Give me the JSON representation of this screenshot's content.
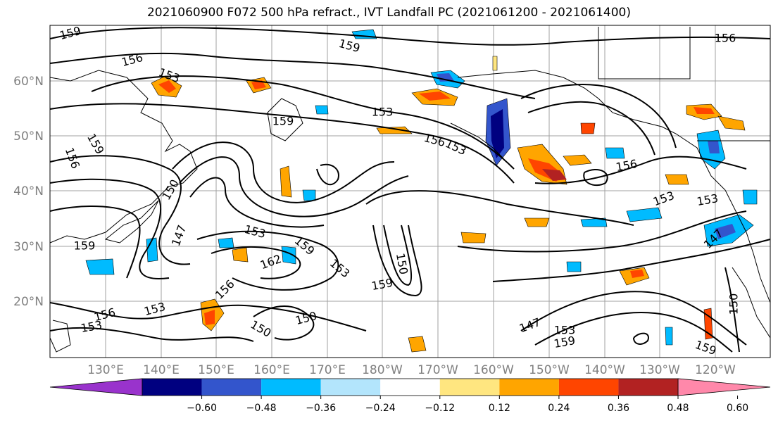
{
  "title": "2021060900 F072 500 hPa refract., IVT Landfall PC (2021061200 - 2021061400)",
  "map": {
    "lat_labels": [
      "60°N",
      "50°N",
      "40°N",
      "30°N",
      "20°N"
    ],
    "lon_labels": [
      "130°E",
      "140°E",
      "150°E",
      "160°E",
      "170°E",
      "180°W",
      "170°W",
      "160°W",
      "150°W",
      "140°W",
      "130°W",
      "120°W"
    ],
    "contour_labels": [
      "159",
      "156",
      "153",
      "159",
      "153",
      "159",
      "156",
      "153",
      "156",
      "159",
      "150",
      "147",
      "153",
      "159",
      "162",
      "153",
      "150",
      "159",
      "156",
      "153",
      "150",
      "153",
      "147",
      "153",
      "159",
      "150",
      "156",
      "156",
      "153",
      "147",
      "150",
      "159",
      "153",
      "159",
      "156"
    ],
    "land_color": "#000000",
    "grid_color": "#a0a0a0"
  },
  "colorbar": {
    "ticks": [
      "−0.60",
      "−0.48",
      "−0.36",
      "−0.24",
      "−0.12",
      "0.12",
      "0.24",
      "0.36",
      "0.48",
      "0.60"
    ],
    "colors": [
      "#9933cc",
      "#000080",
      "#3355cc",
      "#00bbff",
      "#b3e5fc",
      "#ffffff",
      "#ffe680",
      "#ffa500",
      "#ff4500",
      "#b22222",
      "#ff88aa"
    ]
  }
}
